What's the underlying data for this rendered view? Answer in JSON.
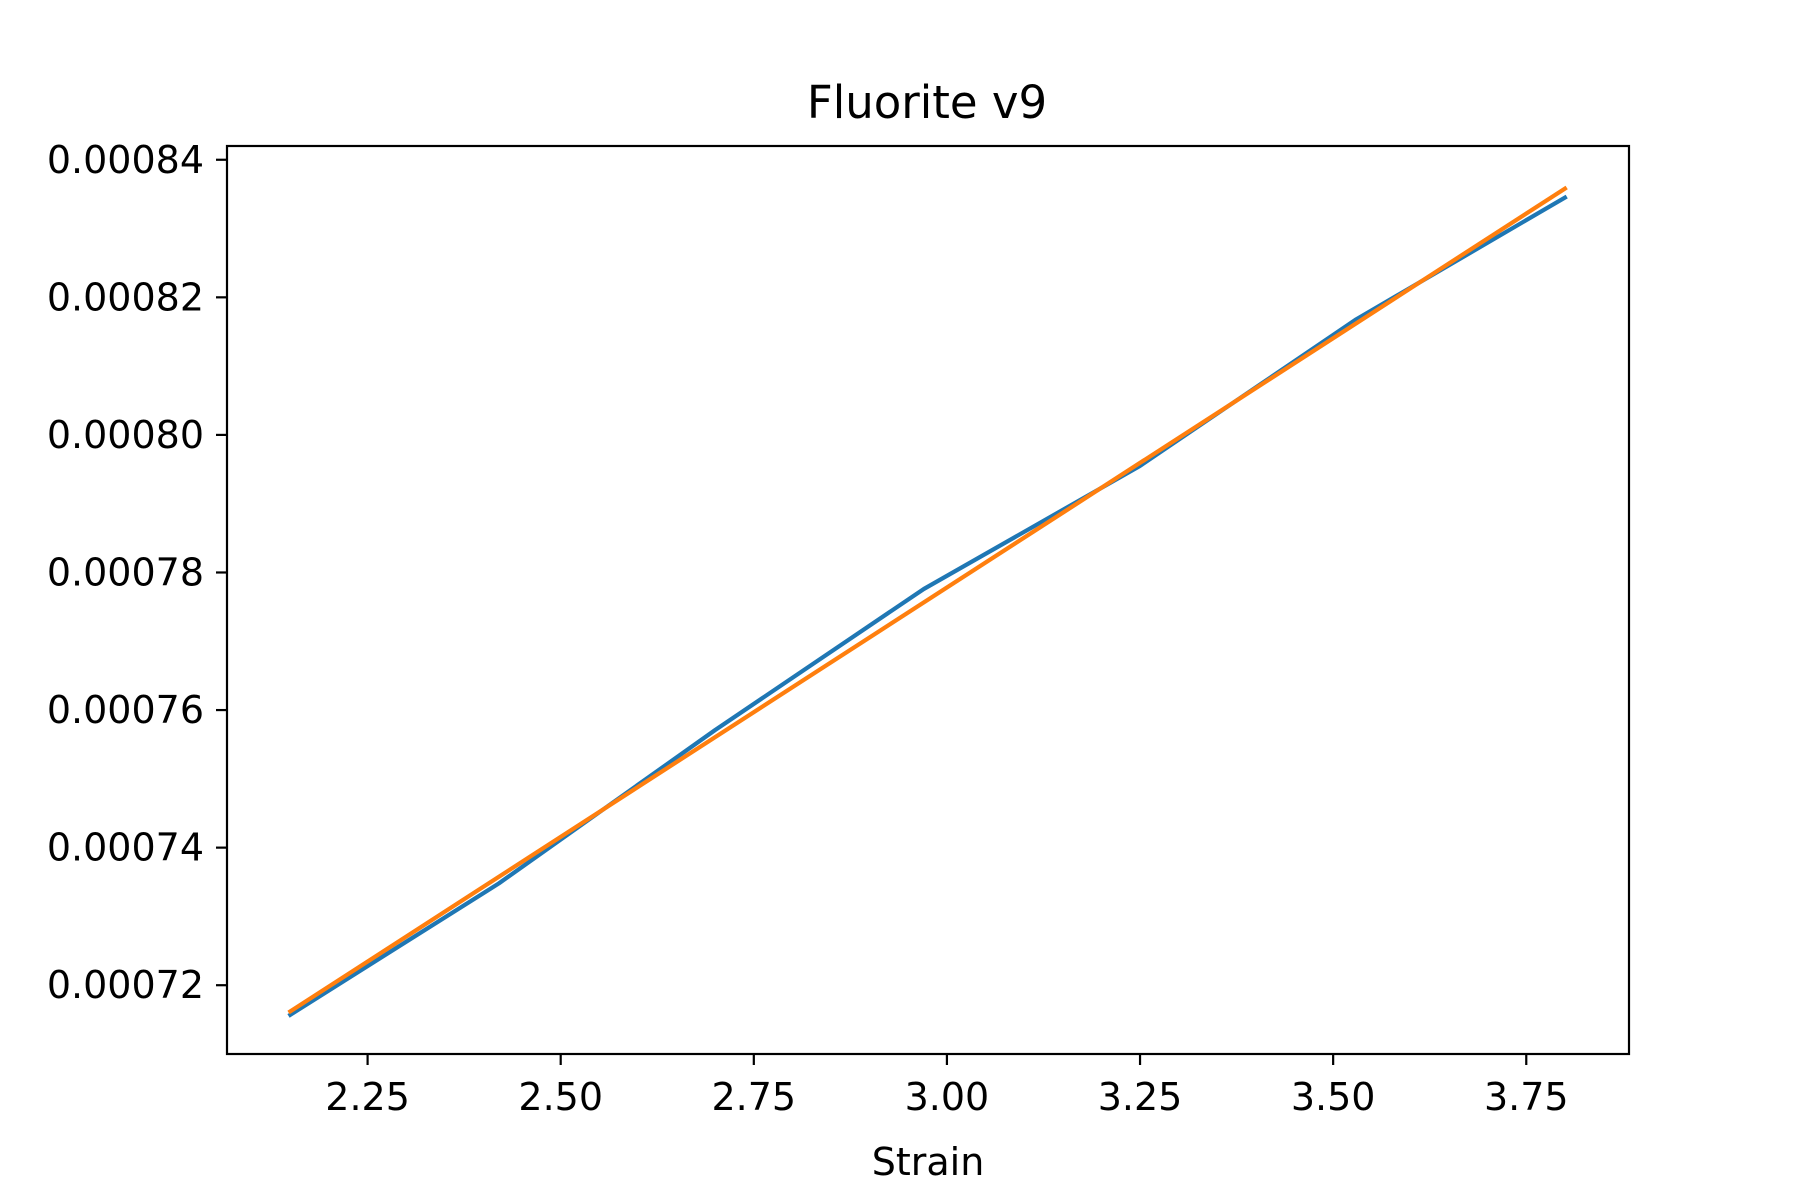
{
  "chart_data": {
    "type": "line",
    "title": "Fluorite v9",
    "xlabel": "Strain",
    "ylabel": "",
    "xlim": [
      2.068,
      3.883
    ],
    "ylim": [
      0.00071,
      0.000842
    ],
    "x_ticks": [
      2.25,
      2.5,
      2.75,
      3.0,
      3.25,
      3.5,
      3.75
    ],
    "x_tick_labels": [
      "2.25",
      "2.50",
      "2.75",
      "3.00",
      "3.25",
      "3.50",
      "3.75"
    ],
    "y_ticks": [
      0.00072,
      0.00074,
      0.00076,
      0.00078,
      0.0008,
      0.00082,
      0.00084
    ],
    "y_tick_labels": [
      "0.00072",
      "0.00074",
      "0.00076",
      "0.00078",
      "0.00080",
      "0.00082",
      "0.00084"
    ],
    "grid": false,
    "series": [
      {
        "color": "#1f77b4",
        "x": [
          2.15,
          2.42,
          2.7,
          2.97,
          3.25,
          3.53,
          3.8
        ],
        "y": [
          0.0007157,
          0.0007348,
          0.0007571,
          0.0007776,
          0.0007955,
          0.0008168,
          0.0008345
        ]
      },
      {
        "color": "#ff7f0e",
        "x": [
          2.15,
          3.8
        ],
        "y": [
          0.0007162,
          0.0008358
        ]
      }
    ]
  }
}
